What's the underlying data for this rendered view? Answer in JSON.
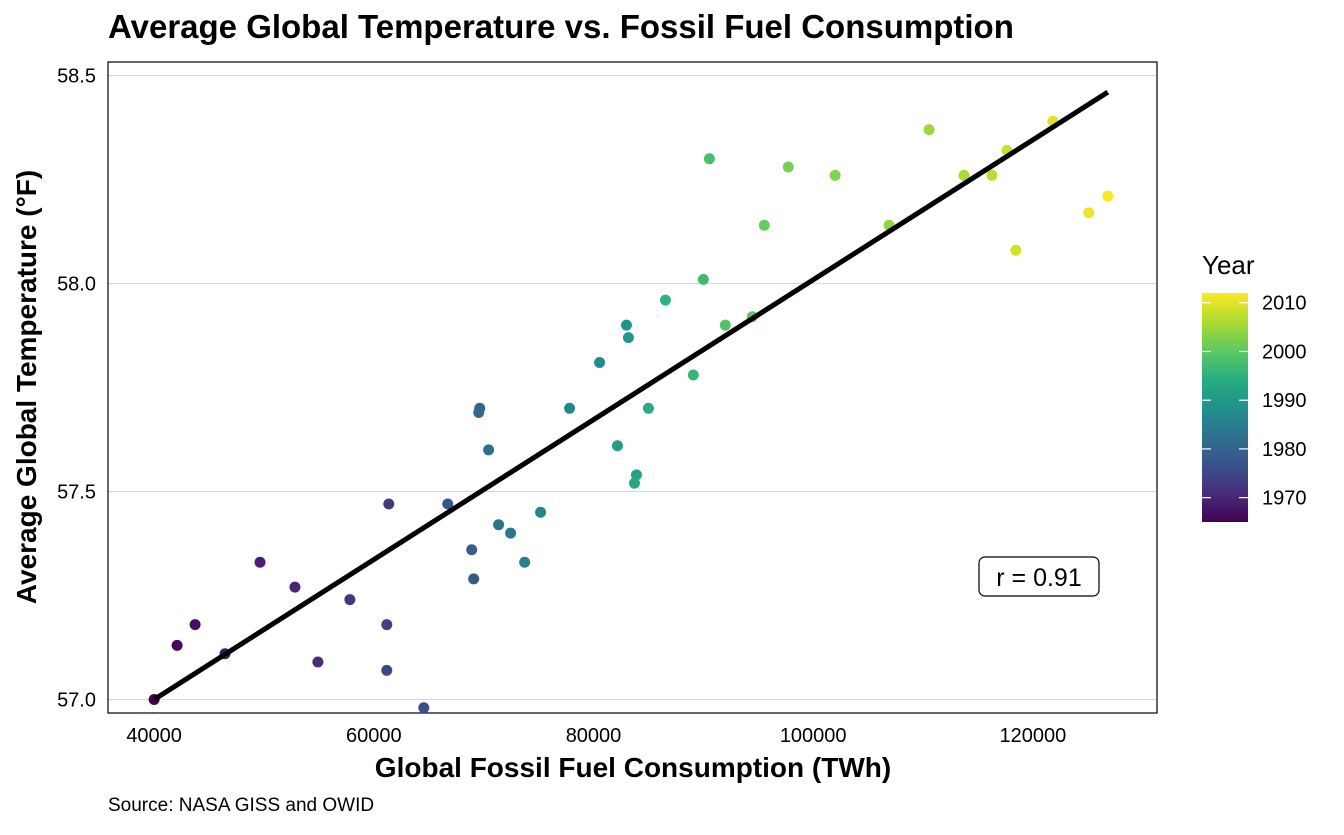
{
  "chart_data": {
    "type": "scatter",
    "title": "Average Global Temperature vs. Fossil Fuel Consumption",
    "xlabel": "Global Fossil Fuel Consumption (TWh)",
    "ylabel": "Average Global Temperature (°F)",
    "caption": "Source: NASA GISS and OWID",
    "xlim": [
      35800,
      131300
    ],
    "ylim": [
      56.9675,
      58.5325
    ],
    "xticks": [
      40000,
      60000,
      80000,
      100000,
      120000
    ],
    "xtick_labels": [
      "40000",
      "60000",
      "80000",
      "100000",
      "120000"
    ],
    "yticks": [
      57.0,
      57.5,
      58.0,
      58.5
    ],
    "ytick_labels": [
      "57.0",
      "57.5",
      "58.0",
      "58.5"
    ],
    "grid": "horizontal major",
    "legend": {
      "title": "Year",
      "position": "right",
      "type": "colorbar",
      "palette": "viridis",
      "range": [
        1965,
        2012
      ],
      "ticks": [
        1970,
        1980,
        1990,
        2000,
        2010
      ],
      "tick_labels": [
        "1970",
        "1980",
        "1990",
        "2000",
        "2010"
      ]
    },
    "annotation": "r = 0.91",
    "fit_line": {
      "x": [
        40000,
        126820
      ],
      "y": [
        57.0,
        58.46
      ],
      "color": "#000000"
    },
    "points": [
      {
        "x": 40000,
        "y": 57.0,
        "year": 1965
      },
      {
        "x": 42090,
        "y": 57.13,
        "year": 1966
      },
      {
        "x": 43730,
        "y": 57.18,
        "year": 1967
      },
      {
        "x": 46450,
        "y": 57.11,
        "year": 1968
      },
      {
        "x": 49640,
        "y": 57.33,
        "year": 1969
      },
      {
        "x": 52820,
        "y": 57.27,
        "year": 1970
      },
      {
        "x": 54910,
        "y": 57.09,
        "year": 1971
      },
      {
        "x": 57820,
        "y": 57.24,
        "year": 1972
      },
      {
        "x": 61360,
        "y": 57.47,
        "year": 1973
      },
      {
        "x": 61180,
        "y": 57.18,
        "year": 1974
      },
      {
        "x": 61180,
        "y": 57.07,
        "year": 1975
      },
      {
        "x": 64550,
        "y": 56.98,
        "year": 1976
      },
      {
        "x": 66730,
        "y": 57.47,
        "year": 1977
      },
      {
        "x": 69090,
        "y": 57.29,
        "year": 1978
      },
      {
        "x": 68910,
        "y": 57.36,
        "year": 1979
      },
      {
        "x": 69640,
        "y": 57.7,
        "year": 1980
      },
      {
        "x": 69550,
        "y": 57.69,
        "year": 1981
      },
      {
        "x": 70450,
        "y": 57.6,
        "year": 1982
      },
      {
        "x": 71360,
        "y": 57.42,
        "year": 1983
      },
      {
        "x": 72450,
        "y": 57.4,
        "year": 1984
      },
      {
        "x": 73730,
        "y": 57.33,
        "year": 1985
      },
      {
        "x": 75180,
        "y": 57.45,
        "year": 1986
      },
      {
        "x": 77820,
        "y": 57.7,
        "year": 1987
      },
      {
        "x": 80550,
        "y": 57.81,
        "year": 1988
      },
      {
        "x": 82180,
        "y": 57.61,
        "year": 1991
      },
      {
        "x": 83000,
        "y": 57.9,
        "year": 1989
      },
      {
        "x": 83180,
        "y": 57.87,
        "year": 1990
      },
      {
        "x": 83910,
        "y": 57.54,
        "year": 1992
      },
      {
        "x": 83730,
        "y": 57.52,
        "year": 1993
      },
      {
        "x": 85000,
        "y": 57.7,
        "year": 1994
      },
      {
        "x": 86550,
        "y": 57.96,
        "year": 1995
      },
      {
        "x": 89090,
        "y": 57.78,
        "year": 1996
      },
      {
        "x": 90000,
        "y": 58.01,
        "year": 1997
      },
      {
        "x": 90550,
        "y": 58.3,
        "year": 1998
      },
      {
        "x": 92000,
        "y": 57.9,
        "year": 1999
      },
      {
        "x": 94450,
        "y": 57.92,
        "year": 2000
      },
      {
        "x": 95550,
        "y": 58.14,
        "year": 2001
      },
      {
        "x": 97730,
        "y": 58.28,
        "year": 2002
      },
      {
        "x": 102000,
        "y": 58.26,
        "year": 2003
      },
      {
        "x": 106910,
        "y": 58.14,
        "year": 2004
      },
      {
        "x": 110550,
        "y": 58.37,
        "year": 2005
      },
      {
        "x": 113730,
        "y": 58.26,
        "year": 2006
      },
      {
        "x": 116270,
        "y": 58.26,
        "year": 2007
      },
      {
        "x": 117640,
        "y": 58.32,
        "year": 2008
      },
      {
        "x": 118450,
        "y": 58.08,
        "year": 2009
      },
      {
        "x": 121820,
        "y": 58.39,
        "year": 2010
      },
      {
        "x": 125090,
        "y": 58.17,
        "year": 2011
      },
      {
        "x": 126820,
        "y": 58.21,
        "year": 2012
      }
    ]
  }
}
